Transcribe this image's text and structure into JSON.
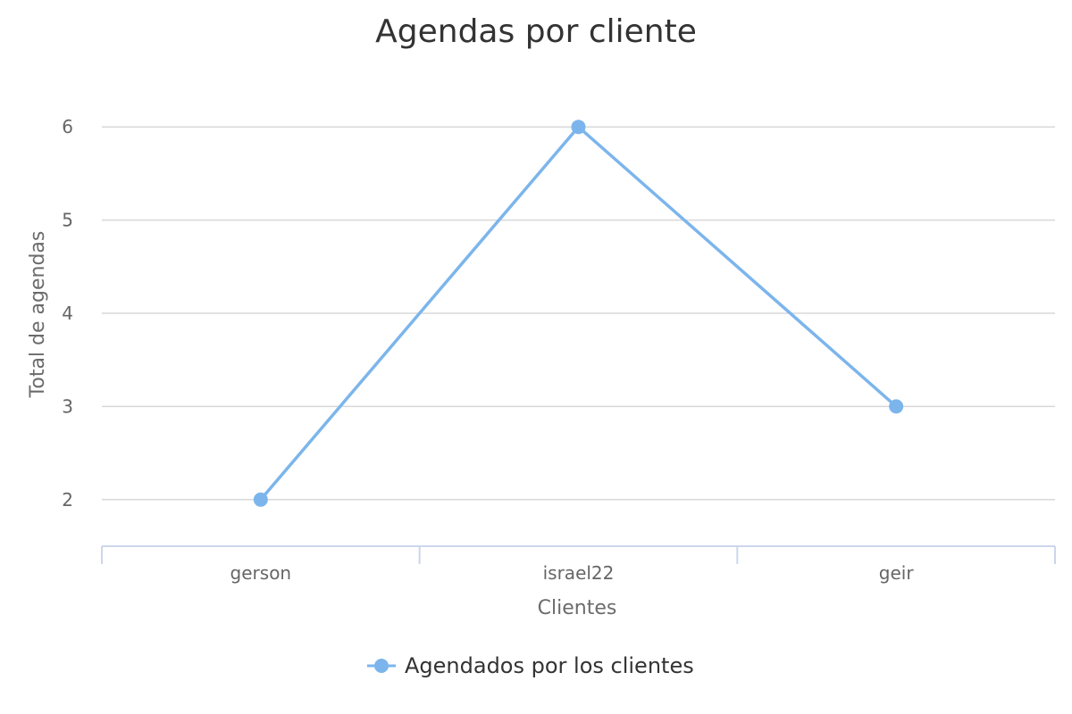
{
  "chart_data": {
    "type": "line",
    "title": "Agendas por cliente",
    "xlabel": "Clientes",
    "ylabel": "Total de agendas",
    "categories": [
      "gerson",
      "israel22",
      "geir"
    ],
    "series": [
      {
        "name": "Agendados por los clientes",
        "values": [
          2,
          6,
          3
        ],
        "color": "#7cb5ec"
      }
    ],
    "yticks": [
      2,
      3,
      4,
      5,
      6
    ],
    "ylim": [
      1.5,
      6.5
    ],
    "grid": true,
    "legend_position": "bottom-center",
    "colors": {
      "gridline": "#d8d8d8",
      "x_axis": "#ccd6eb"
    }
  }
}
